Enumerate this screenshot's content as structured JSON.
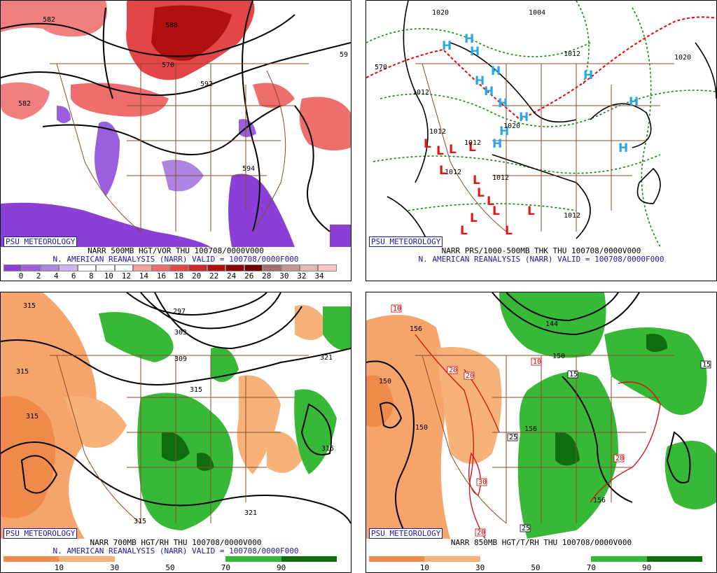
{
  "brand": "PSU METEOROLOGY",
  "panels": {
    "p500": {
      "title1": "NARR 500MB HGT/VOR THU 100708/0000V000",
      "title2": "N. AMERICAN REANALYSIS (NARR) VALID = 100708/0000F000",
      "contour_labels": [
        "582",
        "588",
        "570",
        "592",
        "582",
        "59",
        "594"
      ],
      "colorbar_labels": [
        "0",
        "2",
        "4",
        "6",
        "8",
        "10",
        "12",
        "14",
        "16",
        "18",
        "20",
        "22",
        "24",
        "26",
        "28",
        "30",
        "32",
        "34"
      ],
      "colorbar_colors": [
        "#8a3fd6",
        "#9a5fdc",
        "#ae84e2",
        "#cdb6ee",
        "#ffffff",
        "#ffffff",
        "#ffffff",
        "#f6a0a0",
        "#ee6e6e",
        "#e24646",
        "#d02828",
        "#b01010",
        "#8c0808",
        "#700000",
        "#a07070",
        "#c09898",
        "#e0b8b8",
        "#f7c6cc"
      ]
    },
    "ppres": {
      "title1": "NARR PRS/1000-500MB THK THU 100708/0000V000",
      "title2": "N. AMERICAN REANALYSIS (NARR) VALID = 100708/0000F000",
      "contour_labels": [
        "1020",
        "1004",
        "570",
        "1012",
        "1012",
        "1020",
        "1012",
        "1020",
        "1012",
        "1012",
        "1012",
        "1012"
      ],
      "high_symbol": "H",
      "low_symbol": "L"
    },
    "p700": {
      "title1": "NARR 700MB HGT/RH THU 100708/0000V000",
      "title2": "N. AMERICAN REANALYSIS (NARR) VALID = 100708/0000F000",
      "contour_labels": [
        "315",
        "297",
        "303",
        "309",
        "321",
        "315",
        "315",
        "315",
        "321",
        "315",
        "315"
      ],
      "colorbar_labels": [
        "10",
        "30",
        "50",
        "70",
        "90"
      ]
    },
    "p850": {
      "title1": "NARR 850MB HGT/T/RH THU 100708/0000V000",
      "contour_labels": [
        "156",
        "150",
        "144",
        "150",
        "150",
        "156",
        "156"
      ],
      "temp_labels": [
        "10",
        "20",
        "10",
        "20",
        "15",
        "25",
        "30",
        "20",
        "20",
        "25",
        "15"
      ],
      "colorbar_labels": [
        "10",
        "30",
        "50",
        "70",
        "90"
      ]
    }
  },
  "legend_colors": {
    "dry_dark": "#f08a4b",
    "dry_light": "#f7b27a",
    "moist_light": "#37b837",
    "moist_dark": "#0e6e0e"
  }
}
